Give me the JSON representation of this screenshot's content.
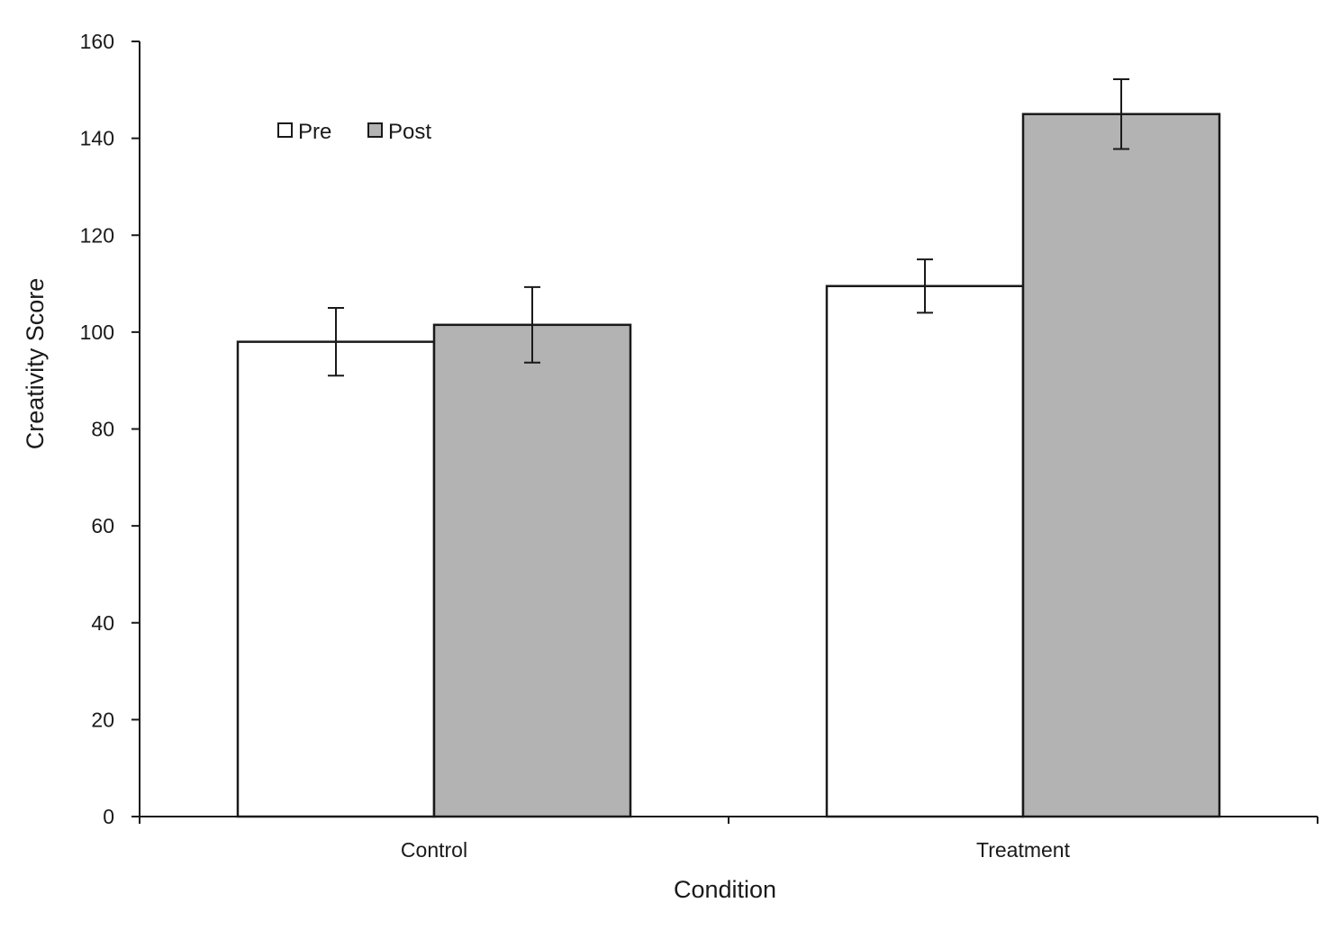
{
  "chart_data": {
    "type": "bar",
    "title": "",
    "xlabel": "Condition",
    "ylabel": "Creativity Score",
    "categories": [
      "Control",
      "Treatment"
    ],
    "ylim": [
      0,
      160
    ],
    "yticks": [
      0,
      20,
      40,
      60,
      80,
      100,
      120,
      140,
      160
    ],
    "ytick_labels": [
      "0",
      "20",
      "40",
      "60",
      "80",
      "100",
      "120",
      "140",
      "160"
    ],
    "series": [
      {
        "name": "Pre",
        "color": "#ffffff",
        "values": [
          98,
          109.5
        ],
        "errors": [
          7,
          5.5
        ]
      },
      {
        "name": "Post",
        "color": "#b3b3b3",
        "values": [
          101.5,
          145
        ],
        "errors": [
          7.8,
          7.2
        ]
      }
    ],
    "legend": {
      "position": "top-left",
      "entries": [
        "Pre",
        "Post"
      ]
    },
    "grid": false
  }
}
